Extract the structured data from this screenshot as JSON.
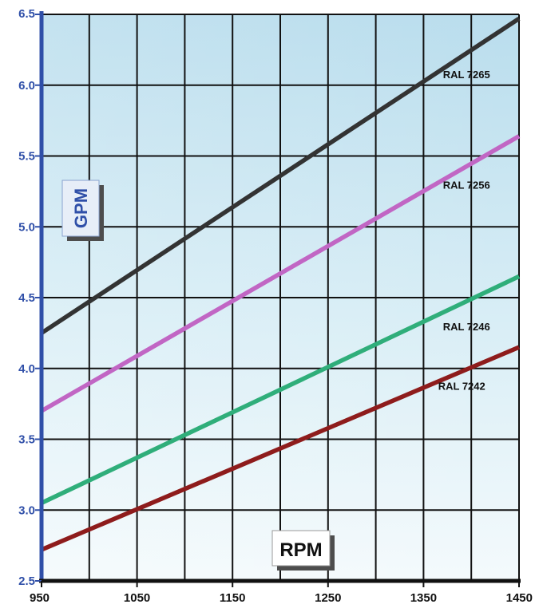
{
  "chart_data": {
    "type": "line",
    "xlabel": "RPM",
    "ylabel": "GPM",
    "xlim": [
      950,
      1450
    ],
    "ylim": [
      2.5,
      6.5
    ],
    "x_ticks": [
      "950",
      "1050",
      "1150",
      "1250",
      "1350",
      "1450"
    ],
    "y_ticks": [
      "2.5",
      "3.0",
      "3.5",
      "4.0",
      "4.5",
      "5.0",
      "5.5",
      "6.0",
      "6.5"
    ],
    "x_grid_step": 50,
    "y_grid_step": 0.5,
    "grid": true,
    "background": "light-blue gradient",
    "series": [
      {
        "name": "RAL 7265",
        "color": "#333333",
        "x": [
          950,
          1450
        ],
        "y": [
          4.25,
          6.47
        ]
      },
      {
        "name": "RAL 7256",
        "color": "#c166c4",
        "x": [
          950,
          1450
        ],
        "y": [
          3.7,
          5.64
        ]
      },
      {
        "name": "RAL 7246",
        "color": "#2fae7a",
        "x": [
          950,
          1450
        ],
        "y": [
          3.05,
          4.65
        ]
      },
      {
        "name": "RAL 7242",
        "color": "#8e1c1c",
        "x": [
          950,
          1450
        ],
        "y": [
          2.72,
          4.15
        ]
      }
    ],
    "series_label_positions": [
      {
        "x": 1395,
        "y": 6.05
      },
      {
        "x": 1395,
        "y": 5.27
      },
      {
        "x": 1395,
        "y": 4.27
      },
      {
        "x": 1390,
        "y": 3.85
      }
    ],
    "axis_color": "#2f4fa8"
  }
}
